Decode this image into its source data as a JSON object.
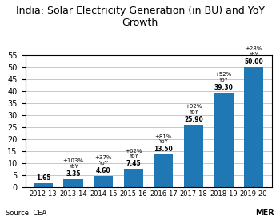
{
  "chart_data": {
    "type": "bar",
    "title": "India: Solar Electricity Generation (in BU) and YoY Growth",
    "categories": [
      "2012-13",
      "2013-14",
      "2014-15",
      "2015-16",
      "2016-17",
      "2017-18",
      "2018-19",
      "2019-20"
    ],
    "values": [
      1.65,
      3.35,
      4.6,
      7.45,
      13.5,
      25.9,
      39.3,
      50.0
    ],
    "data_labels": true,
    "value_labels": [
      "1.65",
      "3.35",
      "4.60",
      "7.45",
      "13.50",
      "25.90",
      "39.30",
      "50.00"
    ],
    "annotations": [
      null,
      "+103%\nYoY",
      "+37%\nYoY",
      "+62%\nYoY",
      "+81%\nYoY",
      "+92%\nYoY",
      "+52%\nYoY",
      "+28%\nYoY"
    ],
    "ylim": [
      0,
      55
    ],
    "yticks": [
      0,
      5,
      10,
      15,
      20,
      25,
      30,
      35,
      40,
      45,
      50,
      55
    ],
    "grid": true,
    "source": "Source: CEA",
    "logo": "MER"
  }
}
